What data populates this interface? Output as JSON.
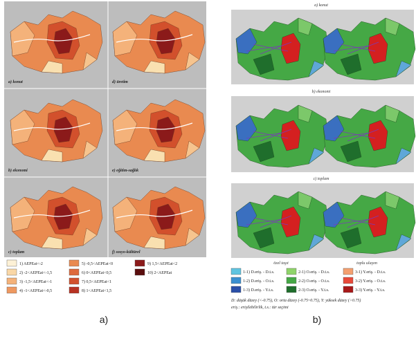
{
  "left": {
    "panels": [
      "a) konut",
      "d) üretim",
      "b) ekonomi",
      "e) eğitim-sağlık",
      "c) toplam",
      "f) sosyo-kültürel"
    ],
    "legend": [
      "1) AEPEat<-2",
      "2) -2<AEPEat<-1,5",
      "3) -1,5<AEPEat<-1",
      "4) -1<AEPEat<-0,5",
      "5) -0,5<AEPEat<0",
      "6) 0<AEPEat<0,5",
      "7) 0,5<AEPEat<1",
      "8) 1<AEPEat<1,5",
      "9) 1,5<AEPEat<2",
      "10) 2<AEPEat"
    ],
    "caption": "a)"
  },
  "right": {
    "titles": [
      "a) konut",
      "b) ekonomi",
      "c) toplam"
    ],
    "columns": [
      "özel taşıt",
      "toplu ulaşım"
    ],
    "legend": [
      "1-1) D.eriş. - D.t.s.",
      "1-2) D.eriş. - O.t.s.",
      "1-3) D.eriş. - Y.t.s.",
      "2-1) O.eriş. - D.t.s.",
      "2-2) O.eriş. - O.t.s.",
      "2-3) O.eriş. - Y.t.s.",
      "3-1) Y.eriş. - D.t.s.",
      "3-2) Y.eriş. - O.t.s.",
      "3-3) Y.eriş. - Y.t.s."
    ],
    "notes": [
      "D: düşük düzey (<-0.75), O: orta düzey (-0.75~0.75), Y: yüksek düzey (>0.75)",
      "eriş.: erişilebilirlik, t.s.: tür seçimi"
    ],
    "caption": "b)"
  }
}
